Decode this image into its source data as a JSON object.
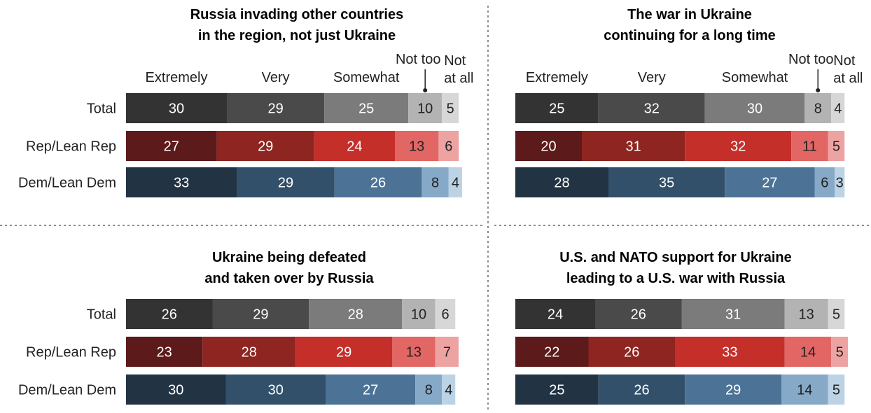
{
  "chart_data": [
    {
      "type": "bar",
      "title": "Russia invading other countries in the region, not just Ukraine",
      "title_lines": [
        "Russia invading other countries",
        "in the region, not just Ukraine"
      ],
      "categories": [
        "Total",
        "Rep/Lean Rep",
        "Dem/Lean Dem"
      ],
      "stacked": true,
      "series": [
        {
          "name": "Extremely",
          "values": [
            30,
            27,
            33
          ]
        },
        {
          "name": "Very",
          "values": [
            29,
            29,
            29
          ]
        },
        {
          "name": "Somewhat",
          "values": [
            25,
            24,
            26
          ]
        },
        {
          "name": "Not too",
          "values": [
            10,
            13,
            8
          ]
        },
        {
          "name": "Not at all",
          "values": [
            5,
            6,
            4
          ]
        }
      ]
    },
    {
      "type": "bar",
      "title": "The war in Ukraine continuing for a long time",
      "title_lines": [
        "The war in Ukraine",
        "continuing for a long time"
      ],
      "categories": [
        "Total",
        "Rep/Lean Rep",
        "Dem/Lean Dem"
      ],
      "stacked": true,
      "series": [
        {
          "name": "Extremely",
          "values": [
            25,
            20,
            28
          ]
        },
        {
          "name": "Very",
          "values": [
            32,
            31,
            35
          ]
        },
        {
          "name": "Somewhat",
          "values": [
            30,
            32,
            27
          ]
        },
        {
          "name": "Not too",
          "values": [
            8,
            11,
            6
          ]
        },
        {
          "name": "Not at all",
          "values": [
            4,
            5,
            3
          ]
        }
      ]
    },
    {
      "type": "bar",
      "title": "Ukraine being defeated and taken over by Russia",
      "title_lines": [
        "Ukraine being defeated",
        "and taken over by Russia"
      ],
      "categories": [
        "Total",
        "Rep/Lean Rep",
        "Dem/Lean Dem"
      ],
      "stacked": true,
      "series": [
        {
          "name": "Extremely",
          "values": [
            26,
            23,
            30
          ]
        },
        {
          "name": "Very",
          "values": [
            29,
            28,
            30
          ]
        },
        {
          "name": "Somewhat",
          "values": [
            28,
            29,
            27
          ]
        },
        {
          "name": "Not too",
          "values": [
            10,
            13,
            8
          ]
        },
        {
          "name": "Not at all",
          "values": [
            6,
            7,
            4
          ]
        }
      ]
    },
    {
      "type": "bar",
      "title": "U.S. and NATO support for Ukraine leading to a U.S. war with Russia",
      "title_lines": [
        "U.S. and NATO support for Ukraine",
        "leading to a U.S. war with Russia"
      ],
      "categories": [
        "Total",
        "Rep/Lean Rep",
        "Dem/Lean Dem"
      ],
      "stacked": true,
      "series": [
        {
          "name": "Extremely",
          "values": [
            24,
            22,
            25
          ]
        },
        {
          "name": "Very",
          "values": [
            26,
            26,
            26
          ]
        },
        {
          "name": "Somewhat",
          "values": [
            31,
            33,
            29
          ]
        },
        {
          "name": "Not too",
          "values": [
            13,
            14,
            14
          ]
        },
        {
          "name": "Not at all",
          "values": [
            5,
            5,
            5
          ]
        }
      ]
    }
  ],
  "colors": {
    "total": [
      "#333333",
      "#4a4a4a",
      "#7b7b7b",
      "#b3b3b3",
      "#d7d7d7"
    ],
    "rep": [
      "#5c1a1a",
      "#8e2520",
      "#c42f2a",
      "#e26664",
      "#eea3a3"
    ],
    "dem": [
      "#223343",
      "#32506a",
      "#4c7396",
      "#87a9c8",
      "#bcd3e5"
    ],
    "value_text_dark": "#222222",
    "value_text_light": "#ffffff"
  }
}
